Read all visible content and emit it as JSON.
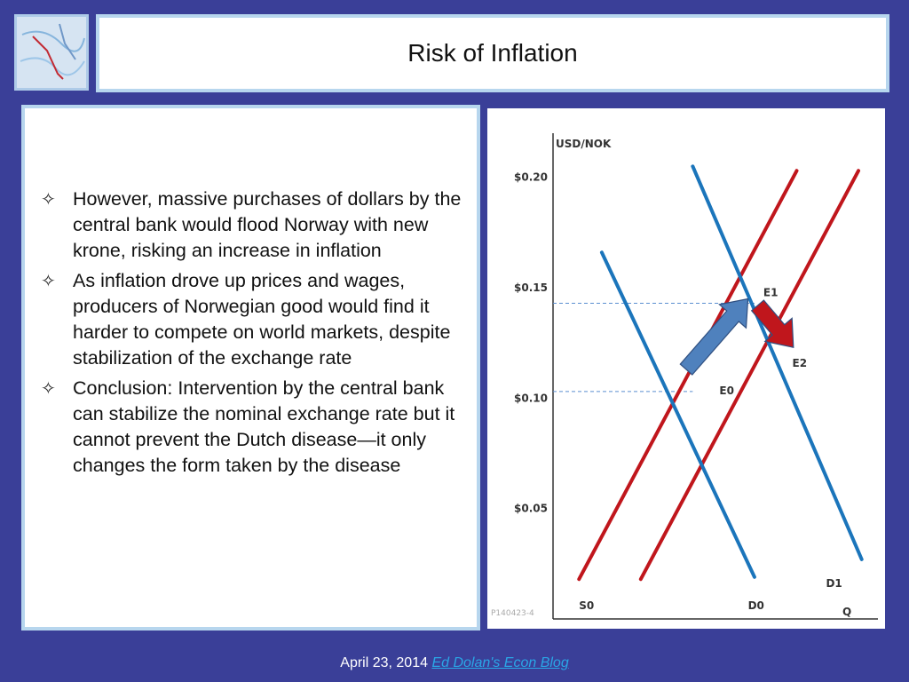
{
  "slide": {
    "title": "Risk of Inflation",
    "bullets": [
      "However, massive purchases of dollars by the central bank would flood Norway with new krone, risking an increase in inflation",
      "As inflation drove up prices and wages, producers of Norwegian good would find it harder to compete on  world markets, despite stabilization of the exchange rate",
      "Conclusion: Intervention by the central bank can stabilize the nominal exchange rate but it cannot prevent the Dutch disease—it only changes the form taken by the disease"
    ],
    "bullet_glyph": "✧"
  },
  "footer": {
    "date": "April 23, 2014",
    "link_text": "Ed Dolan's Econ Blog"
  },
  "chart_data": {
    "type": "line",
    "ylabel": "USD/NOK",
    "xlabel": "Q",
    "yticks": [
      {
        "label": "$0.20",
        "value": 0.2
      },
      {
        "label": "$0.15",
        "value": 0.15
      },
      {
        "label": "$0.10",
        "value": 0.1
      },
      {
        "label": "$0.05",
        "value": 0.05
      }
    ],
    "ylim": [
      0.0,
      0.22
    ],
    "xlim": [
      0,
      100
    ],
    "source_label": "P140423-4",
    "series": [
      {
        "name": "S0",
        "color": "#c0161c",
        "x": [
          8,
          75
        ],
        "y": [
          0.018,
          0.203
        ]
      },
      {
        "name": "",
        "color": "#c0161c",
        "x": [
          27,
          94
        ],
        "y": [
          0.018,
          0.203
        ]
      },
      {
        "name": "D0",
        "color": "#1b75bb",
        "x": [
          15,
          62
        ],
        "y": [
          0.166,
          0.019
        ]
      },
      {
        "name": "D1",
        "color": "#1b75bb",
        "x": [
          43,
          95
        ],
        "y": [
          0.205,
          0.027
        ]
      }
    ],
    "points": [
      {
        "label": "E0",
        "x": 43,
        "y": 0.103
      },
      {
        "label": "E1",
        "x": 62,
        "y": 0.143
      },
      {
        "label": "E2",
        "x": 72,
        "y": 0.119
      }
    ],
    "guide_lines": [
      0.143,
      0.103
    ],
    "arrows": [
      {
        "from": [
          41,
          0.113
        ],
        "to": [
          60,
          0.145
        ],
        "color": "#4f81bd"
      },
      {
        "from": [
          63,
          0.142
        ],
        "to": [
          74,
          0.123
        ],
        "color": "#c0161c"
      }
    ],
    "line_labels": [
      {
        "label": "S0",
        "x": 8,
        "y": 0.006
      },
      {
        "label": "D0",
        "x": 60,
        "y": 0.006
      },
      {
        "label": "D1",
        "x": 84,
        "y": 0.016
      }
    ]
  }
}
